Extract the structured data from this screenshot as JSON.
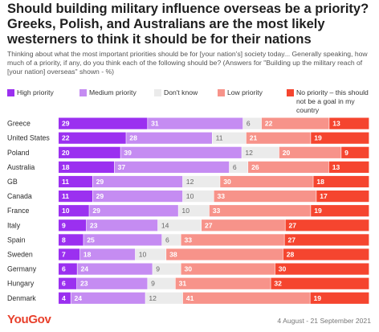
{
  "title": "Should building military influence overseas be a priority? Greeks, Polish, and Australians are the most likely westerners to think it should be for their nations",
  "subtitle": "Thinking about what the most important priorities should be for [your nation's] society today... Generally speaking, how much of a priority, if any, do you think each of the following should be? (Answers for \"Building up the military reach of [your nation] overseas\" shown - %)",
  "footer": {
    "logo": "YouGov",
    "date": "4 August - 21 September 2021"
  },
  "chart_data": {
    "type": "bar",
    "orientation": "horizontal",
    "stacked": true,
    "legend_position": "top",
    "categories": [
      "Greece",
      "United States",
      "Poland",
      "Australia",
      "GB",
      "Canada",
      "France",
      "Italy",
      "Spain",
      "Sweden",
      "Germany",
      "Hungary",
      "Denmark"
    ],
    "series": [
      {
        "name": "High priority",
        "color": "#9b30f0",
        "label_color": "#ffffff",
        "values": [
          29,
          22,
          20,
          18,
          11,
          11,
          10,
          9,
          8,
          7,
          6,
          6,
          4
        ]
      },
      {
        "name": "Medium priority",
        "color": "#c58cf2",
        "label_color": "#ffffff",
        "values": [
          31,
          28,
          39,
          37,
          29,
          29,
          29,
          23,
          25,
          18,
          24,
          23,
          24
        ]
      },
      {
        "name": "Don't know",
        "color": "#ebebeb",
        "label_color": "#666666",
        "values": [
          6,
          11,
          12,
          6,
          12,
          10,
          10,
          14,
          6,
          10,
          9,
          9,
          12
        ]
      },
      {
        "name": "Low priority",
        "color": "#f7938a",
        "label_color": "#ffffff",
        "values": [
          22,
          21,
          20,
          26,
          30,
          33,
          33,
          27,
          33,
          38,
          30,
          31,
          41
        ]
      },
      {
        "name": "No priority – this should not be a goal in my country",
        "color": "#f5452f",
        "label_color": "#ffffff",
        "values": [
          13,
          19,
          9,
          13,
          18,
          17,
          19,
          27,
          27,
          28,
          30,
          32,
          19
        ]
      }
    ]
  }
}
